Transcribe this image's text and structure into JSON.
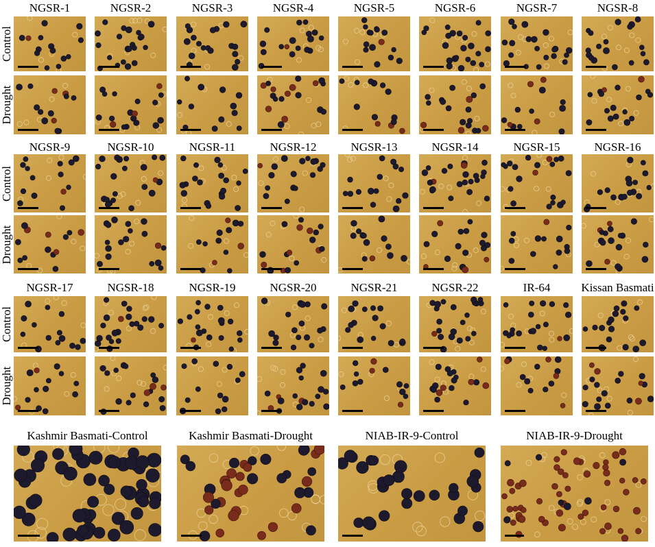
{
  "row_labels": {
    "control": "Control",
    "drought": "Drought"
  },
  "groups": [
    {
      "varieties": [
        "NGSR-1",
        "NGSR-2",
        "NGSR-3",
        "NGSR-4",
        "NGSR-5",
        "NGSR-6",
        "NGSR-7",
        "NGSR-8"
      ]
    },
    {
      "varieties": [
        "NGSR-9",
        "NGSR-10",
        "NGSR-11",
        "NGSR-12",
        "NGSR-13",
        "NGSR-14",
        "NGSR-15",
        "NGSR-16"
      ]
    },
    {
      "varieties": [
        "NGSR-17",
        "NGSR-18",
        "NGSR-19",
        "NGSR-20",
        "NGSR-21",
        "NGSR-22",
        "IR-64",
        "Kissan Basmati"
      ]
    }
  ],
  "large_panels": [
    "Kashmir Basmati-Control",
    "Kashmir Basmati-Drought",
    "NIAB-IR-9-Control",
    "NIAB-IR-9-Drought"
  ],
  "colors": {
    "background": "#c99c44",
    "viable_pollen": "#1e1a2e",
    "nonviable_pollen": "#7a2c1c",
    "scale_bar": "#000000"
  }
}
